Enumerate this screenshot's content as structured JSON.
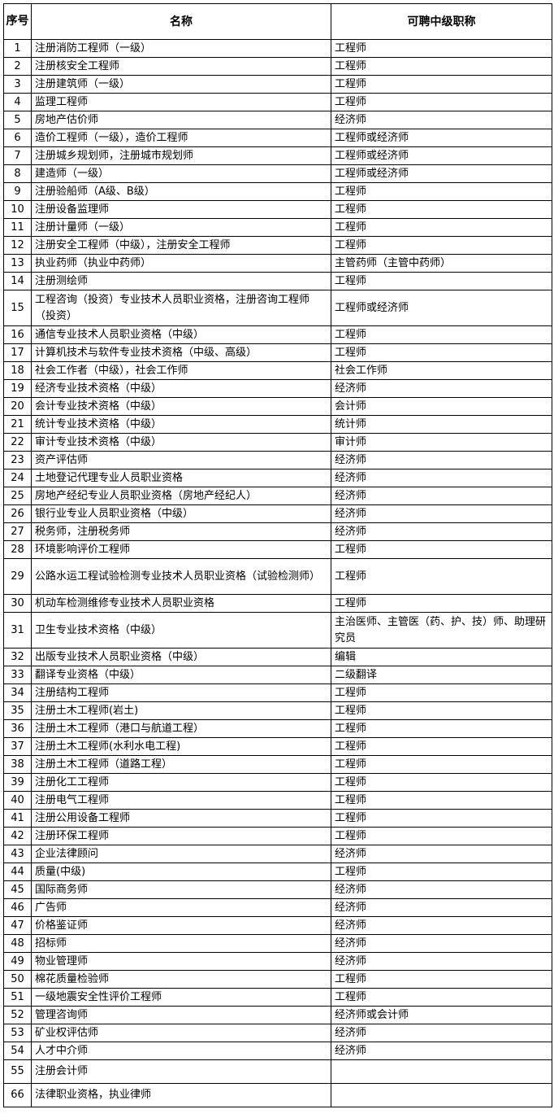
{
  "table": {
    "headers": [
      "序号",
      "名称",
      "可聘中级职称"
    ],
    "rows": [
      [
        "1",
        "注册消防工程师（一级）",
        "工程师"
      ],
      [
        "2",
        "注册核安全工程师",
        "工程师"
      ],
      [
        "3",
        "注册建筑师（一级）",
        "工程师"
      ],
      [
        "4",
        "监理工程师",
        "工程师"
      ],
      [
        "5",
        "房地产估价师",
        "经济师"
      ],
      [
        "6",
        "造价工程师（一级），造价工程师",
        "工程师或经济师"
      ],
      [
        "7",
        "注册城乡规划师，注册城市规划师",
        "工程师或经济师"
      ],
      [
        "8",
        "建造师（一级）",
        "工程师或经济师"
      ],
      [
        "9",
        "注册验船师（A级、B级）",
        "工程师"
      ],
      [
        "10",
        "注册设备监理师",
        "工程师"
      ],
      [
        "11",
        "注册计量师（一级）",
        "工程师"
      ],
      [
        "12",
        "注册安全工程师（中级），注册安全工程师",
        "工程师"
      ],
      [
        "13",
        "执业药师（执业中药师）",
        "主管药师（主管中药师）"
      ],
      [
        "14",
        "注册测绘师",
        "工程师"
      ],
      [
        "15",
        "工程咨询（投资）专业技术人员职业资格，注册咨询工程师（投资）",
        "工程师或经济师"
      ],
      [
        "16",
        "通信专业技术人员职业资格（中级）",
        "工程师"
      ],
      [
        "17",
        "计算机技术与软件专业技术资格（中级、高级）",
        "工程师"
      ],
      [
        "18",
        "社会工作者（中级），社会工作师",
        "社会工作师"
      ],
      [
        "19",
        "经济专业技术资格（中级）",
        "经济师"
      ],
      [
        "20",
        "会计专业技术资格（中级）",
        "会计师"
      ],
      [
        "21",
        "统计专业技术资格（中级）",
        "统计师"
      ],
      [
        "22",
        "审计专业技术资格（中级）",
        "审计师"
      ],
      [
        "23",
        "资产评估师",
        "经济师"
      ],
      [
        "24",
        "土地登记代理专业人员职业资格",
        "经济师"
      ],
      [
        "25",
        "房地产经纪专业人员职业资格（房地产经纪人）",
        "经济师"
      ],
      [
        "26",
        "银行业专业人员职业资格（中级）",
        "经济师"
      ],
      [
        "27",
        "税务师，注册税务师",
        "经济师"
      ],
      [
        "28",
        "环境影响评价工程师",
        "工程师"
      ],
      [
        "29",
        "公路水运工程试验检测专业技术人员职业资格（试验检测师）",
        "工程师"
      ],
      [
        "30",
        "机动车检测维修专业技术人员职业资格",
        "工程师"
      ],
      [
        "31",
        "卫生专业技术资格（中级）",
        "主治医师、主管医（药、护、技）师、助理研究员"
      ],
      [
        "32",
        "出版专业技术人员职业资格（中级）",
        "编辑"
      ],
      [
        "33",
        "翻译专业资格（中级）",
        "二级翻译"
      ],
      [
        "34",
        "注册结构工程师",
        "工程师"
      ],
      [
        "35",
        "注册土木工程师(岩土)",
        "工程师"
      ],
      [
        "36",
        "注册土木工程师（港口与航道工程）",
        "工程师"
      ],
      [
        "37",
        "注册土木工程师(水利水电工程)",
        "工程师"
      ],
      [
        "38",
        "注册土木工程师（道路工程）",
        "工程师"
      ],
      [
        "39",
        "注册化工工程师",
        "工程师"
      ],
      [
        "40",
        "注册电气工程师",
        "工程师"
      ],
      [
        "41",
        "注册公用设备工程师",
        "工程师"
      ],
      [
        "42",
        "注册环保工程师",
        "工程师"
      ],
      [
        "43",
        "企业法律顾问",
        "经济师"
      ],
      [
        "44",
        "质量(中级)",
        "工程师"
      ],
      [
        "45",
        "国际商务师",
        "经济师"
      ],
      [
        "46",
        "广告师",
        "经济师"
      ],
      [
        "47",
        "价格鉴证师",
        "经济师"
      ],
      [
        "48",
        "招标师",
        "经济师"
      ],
      [
        "49",
        "物业管理师",
        "经济师"
      ],
      [
        "50",
        "棉花质量检验师",
        "工程师"
      ],
      [
        "51",
        "一级地震安全性评价工程师",
        "工程师"
      ],
      [
        "52",
        "管理咨询师",
        "经济师或会计师"
      ],
      [
        "53",
        "矿业权评估师",
        "经济师"
      ],
      [
        "54",
        "人才中介师",
        "经济师"
      ],
      [
        "55",
        "注册会计师",
        ""
      ],
      [
        "66",
        "法律职业资格，执业律师",
        ""
      ]
    ]
  }
}
